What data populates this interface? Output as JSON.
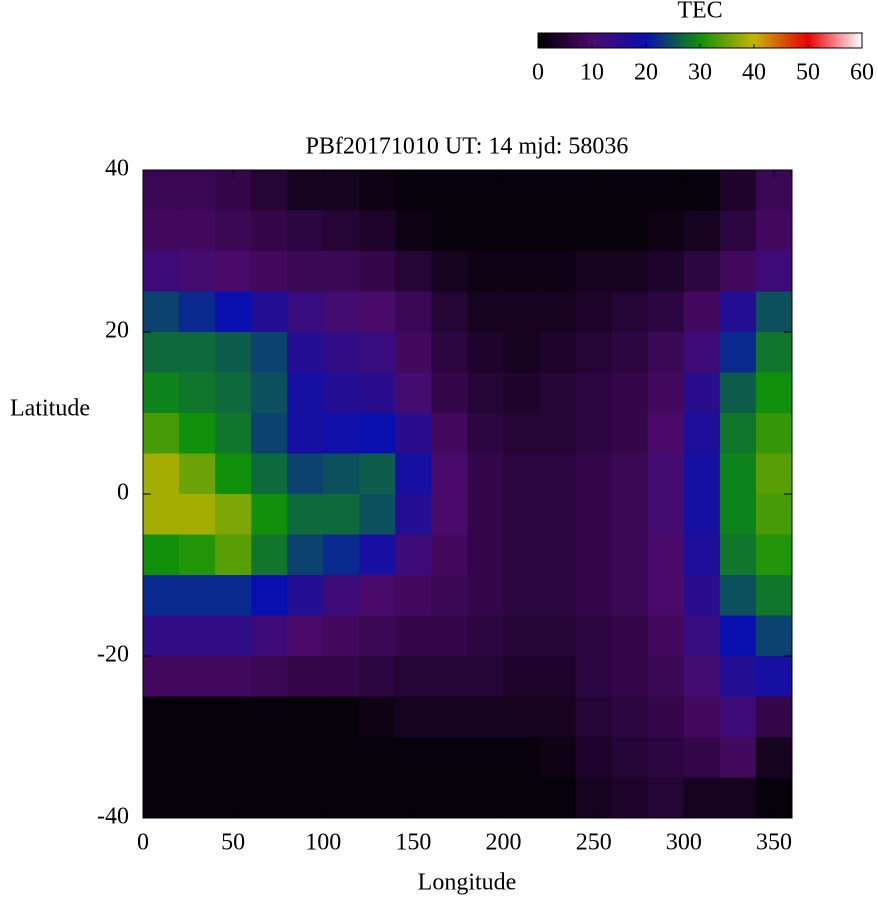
{
  "chart_data": {
    "type": "heatmap",
    "title": "PBf20171010  UT: 14  mjd: 58036",
    "x_label": "Longitude",
    "y_label": "Latitude",
    "colorbar_label": "TEC",
    "x": [
      10,
      30,
      50,
      70,
      90,
      110,
      130,
      150,
      170,
      190,
      210,
      230,
      250,
      270,
      290,
      310,
      330,
      350
    ],
    "y": [
      37.5,
      32.5,
      27.5,
      22.5,
      17.5,
      12.5,
      7.5,
      2.5,
      -2.5,
      -7.5,
      -12.5,
      -17.5,
      -22.5,
      -27.5,
      -32.5,
      -37.5
    ],
    "z": [
      [
        8,
        8,
        7,
        5,
        3,
        3,
        2,
        1,
        1,
        1,
        1,
        1,
        1,
        1,
        1,
        1,
        4,
        8
      ],
      [
        9,
        9,
        8,
        7,
        6,
        5,
        4,
        2,
        1,
        1,
        1,
        1,
        1,
        1,
        2,
        3,
        6,
        9
      ],
      [
        12,
        11,
        10,
        9,
        8,
        8,
        7,
        5,
        3,
        2,
        2,
        2,
        3,
        3,
        4,
        6,
        9,
        12
      ],
      [
        24,
        22,
        20,
        16,
        13,
        11,
        10,
        8,
        5,
        3,
        3,
        3,
        4,
        5,
        6,
        9,
        16,
        25
      ],
      [
        27,
        27,
        26,
        24,
        16,
        14,
        13,
        9,
        6,
        4,
        3,
        4,
        5,
        6,
        8,
        12,
        22,
        28
      ],
      [
        29,
        28,
        27,
        25,
        18,
        16,
        15,
        11,
        7,
        5,
        4,
        5,
        6,
        7,
        9,
        15,
        26,
        30
      ],
      [
        33,
        30,
        28,
        24,
        18,
        19,
        20,
        15,
        9,
        6,
        5,
        5,
        6,
        7,
        10,
        17,
        28,
        32
      ],
      [
        38,
        35,
        30,
        27,
        24,
        25,
        26,
        18,
        10,
        7,
        6,
        6,
        7,
        8,
        11,
        18,
        29,
        34
      ],
      [
        38,
        38,
        36,
        30,
        27,
        27,
        25,
        16,
        10,
        7,
        6,
        6,
        7,
        8,
        11,
        18,
        29,
        33
      ],
      [
        30,
        31,
        34,
        28,
        24,
        22,
        18,
        12,
        9,
        7,
        6,
        6,
        7,
        8,
        10,
        17,
        28,
        31
      ],
      [
        22,
        22,
        22,
        20,
        16,
        12,
        10,
        9,
        8,
        7,
        6,
        6,
        7,
        8,
        10,
        15,
        25,
        28
      ],
      [
        14,
        14,
        14,
        12,
        10,
        9,
        8,
        7,
        7,
        6,
        5,
        5,
        6,
        7,
        9,
        13,
        20,
        24
      ],
      [
        9,
        9,
        9,
        8,
        7,
        7,
        6,
        5,
        5,
        5,
        4,
        4,
        6,
        7,
        8,
        11,
        16,
        18
      ],
      [
        1,
        1,
        1,
        1,
        1,
        1,
        2,
        3,
        3,
        3,
        3,
        3,
        5,
        6,
        7,
        9,
        12,
        7
      ],
      [
        1,
        1,
        1,
        1,
        1,
        1,
        1,
        1,
        1,
        1,
        1,
        2,
        4,
        5,
        6,
        7,
        9,
        3
      ],
      [
        1,
        1,
        1,
        1,
        1,
        1,
        1,
        1,
        1,
        1,
        1,
        1,
        3,
        4,
        5,
        3,
        3,
        1
      ]
    ],
    "xlim": [
      0,
      360
    ],
    "ylim": [
      -40,
      40
    ],
    "zlim": [
      0,
      60
    ],
    "xticks": [
      0,
      50,
      100,
      150,
      200,
      250,
      300,
      350
    ],
    "yticks": [
      -40,
      -20,
      0,
      20,
      40
    ],
    "zticks": [
      0,
      10,
      20,
      30,
      40,
      50,
      60
    ],
    "colormap": [
      "#000000",
      "#4a0a6a",
      "#0a10b0",
      "#10900a",
      "#c8b400",
      "#e80000",
      "#ffffff"
    ]
  }
}
